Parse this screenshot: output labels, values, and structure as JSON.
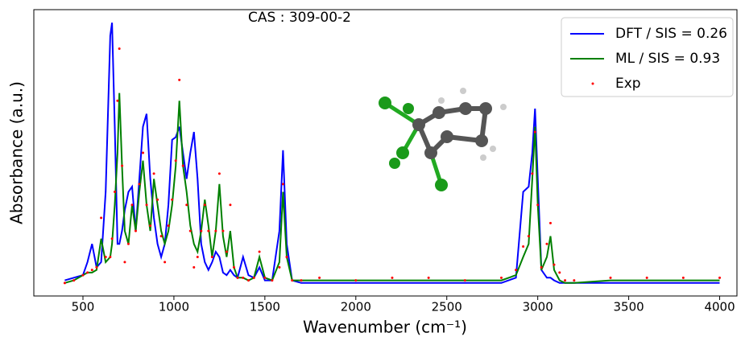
{
  "chart_data": {
    "type": "line",
    "title": "CAS : 309-00-2",
    "x_label": "Wavenumber (cm⁻¹)",
    "y_label": "Absorbance (a.u.)",
    "x": [
      400,
      450,
      500,
      525,
      550,
      575,
      600,
      625,
      650,
      660,
      675,
      690,
      700,
      715,
      730,
      750,
      770,
      790,
      810,
      830,
      850,
      870,
      890,
      910,
      930,
      950,
      970,
      990,
      1010,
      1030,
      1050,
      1070,
      1090,
      1110,
      1130,
      1150,
      1170,
      1190,
      1210,
      1230,
      1250,
      1270,
      1290,
      1310,
      1330,
      1350,
      1380,
      1410,
      1440,
      1470,
      1500,
      1540,
      1580,
      1600,
      1620,
      1650,
      1700,
      1800,
      2000,
      2200,
      2400,
      2600,
      2800,
      2880,
      2920,
      2950,
      2970,
      2985,
      3000,
      3020,
      3050,
      3070,
      3090,
      3120,
      3150,
      3200,
      3400,
      3600,
      3800,
      4000
    ],
    "series": [
      {
        "name": "DFT / SIS = 0.26",
        "color": "#0000ff",
        "style": "line",
        "values": [
          0.01,
          0.02,
          0.03,
          0.08,
          0.15,
          0.06,
          0.08,
          0.35,
          0.95,
          1.0,
          0.6,
          0.15,
          0.15,
          0.2,
          0.28,
          0.35,
          0.37,
          0.2,
          0.4,
          0.6,
          0.65,
          0.4,
          0.25,
          0.15,
          0.1,
          0.15,
          0.3,
          0.55,
          0.56,
          0.6,
          0.5,
          0.4,
          0.5,
          0.58,
          0.4,
          0.15,
          0.08,
          0.05,
          0.08,
          0.12,
          0.1,
          0.04,
          0.03,
          0.05,
          0.03,
          0.02,
          0.1,
          0.03,
          0.02,
          0.06,
          0.01,
          0.01,
          0.2,
          0.51,
          0.15,
          0.01,
          0.0,
          0.0,
          0.0,
          0.0,
          0.0,
          0.0,
          0.0,
          0.02,
          0.35,
          0.37,
          0.5,
          0.67,
          0.4,
          0.05,
          0.02,
          0.02,
          0.01,
          0.0,
          0.0,
          0.0,
          0.0,
          0.0,
          0.0,
          0.0
        ]
      },
      {
        "name": "ML / SIS = 0.93",
        "color": "#008000",
        "style": "line",
        "values": [
          0.0,
          0.01,
          0.03,
          0.04,
          0.04,
          0.05,
          0.17,
          0.08,
          0.1,
          0.15,
          0.3,
          0.5,
          0.73,
          0.45,
          0.2,
          0.15,
          0.3,
          0.2,
          0.35,
          0.47,
          0.3,
          0.2,
          0.4,
          0.3,
          0.2,
          0.15,
          0.2,
          0.3,
          0.45,
          0.7,
          0.45,
          0.35,
          0.22,
          0.15,
          0.12,
          0.2,
          0.32,
          0.22,
          0.1,
          0.2,
          0.38,
          0.18,
          0.1,
          0.2,
          0.06,
          0.02,
          0.02,
          0.01,
          0.02,
          0.1,
          0.02,
          0.01,
          0.08,
          0.35,
          0.1,
          0.01,
          0.01,
          0.01,
          0.01,
          0.01,
          0.01,
          0.01,
          0.01,
          0.03,
          0.1,
          0.15,
          0.4,
          0.6,
          0.3,
          0.05,
          0.1,
          0.18,
          0.05,
          0.01,
          0.0,
          0.0,
          0.01,
          0.01,
          0.01,
          0.01
        ]
      },
      {
        "name": "Exp",
        "color": "#ff0000",
        "style": "dots",
        "values": [
          0.0,
          0.01,
          0.03,
          0.04,
          0.05,
          0.06,
          0.25,
          0.1,
          0.1,
          0.17,
          0.35,
          0.7,
          0.9,
          0.45,
          0.08,
          0.15,
          0.3,
          0.2,
          0.38,
          0.5,
          0.3,
          0.22,
          0.42,
          0.32,
          0.18,
          0.08,
          0.22,
          0.32,
          0.47,
          0.78,
          0.45,
          0.3,
          0.2,
          0.06,
          0.1,
          0.2,
          0.3,
          0.2,
          0.1,
          0.2,
          0.42,
          0.2,
          0.12,
          0.3,
          0.06,
          0.02,
          0.02,
          0.01,
          0.02,
          0.12,
          0.02,
          0.01,
          0.06,
          0.38,
          0.1,
          0.01,
          0.01,
          0.02,
          0.01,
          0.02,
          0.02,
          0.01,
          0.02,
          0.05,
          0.14,
          0.18,
          0.42,
          0.58,
          0.3,
          0.06,
          0.15,
          0.23,
          0.07,
          0.04,
          0.01,
          0.01,
          0.02,
          0.02,
          0.02,
          0.02
        ]
      }
    ],
    "xlim": [
      230,
      4095
    ],
    "ylim": [
      -0.05,
      1.05
    ],
    "xticks": [
      500,
      1000,
      1500,
      2000,
      2500,
      3000,
      3500,
      4000
    ],
    "legend": "upper right"
  }
}
